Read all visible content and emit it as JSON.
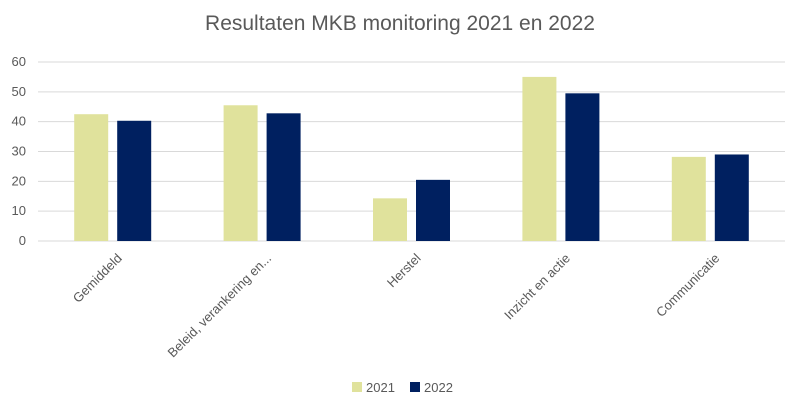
{
  "chart_data": {
    "type": "bar",
    "title": "Resultaten MKB monitoring 2021 en 2022",
    "categories": [
      "Gemiddeld",
      "Beleid, verankering en...",
      "Herstel",
      "Inzicht en actie",
      "Communicatie"
    ],
    "series": [
      {
        "name": "2021",
        "values": [
          42.5,
          45.5,
          14.3,
          55.0,
          28.2
        ],
        "color": "#e0e29c"
      },
      {
        "name": "2022",
        "values": [
          40.3,
          42.8,
          20.5,
          49.5,
          29.0
        ],
        "color": "#002060"
      }
    ],
    "ylim": [
      0,
      60
    ],
    "yticks": [
      0,
      10,
      20,
      30,
      40,
      50,
      60
    ],
    "grid": true,
    "legend": "bottom",
    "xlabel": "",
    "ylabel": ""
  }
}
